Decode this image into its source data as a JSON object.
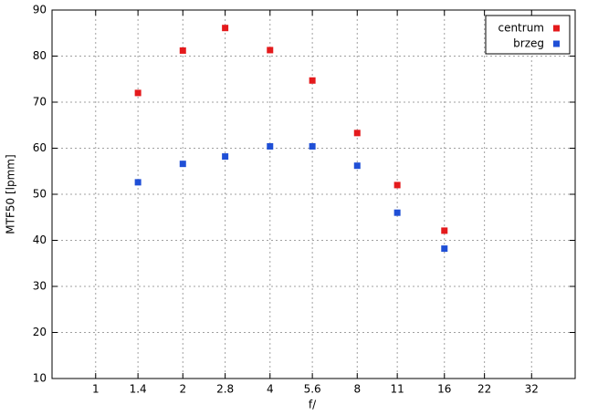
{
  "chart_data": {
    "type": "scatter",
    "x_label": "f/",
    "y_label": "MTF50 [lpmm]",
    "x": [
      1.4,
      2,
      2.8,
      4,
      5.6,
      8,
      11,
      16
    ],
    "series": [
      {
        "name": "centrum",
        "color": "#e41a1c",
        "values": [
          72,
          81.2,
          86.1,
          81.3,
          74.7,
          63.3,
          52,
          42.1
        ]
      },
      {
        "name": "brzeg",
        "color": "#1f4fd6",
        "values": [
          52.6,
          56.6,
          58.2,
          60.4,
          60.4,
          56.2,
          46,
          38.2
        ]
      }
    ],
    "xscale": "log",
    "xlim": [
      0.707,
      45.25
    ],
    "xticks": [
      1,
      1.4,
      2,
      2.8,
      4,
      5.6,
      8,
      11,
      16,
      22,
      32
    ],
    "ylim": [
      10,
      90
    ],
    "yticks": [
      10,
      20,
      30,
      40,
      50,
      60,
      70,
      80,
      90
    ],
    "grid": true,
    "legend": "top-right"
  }
}
